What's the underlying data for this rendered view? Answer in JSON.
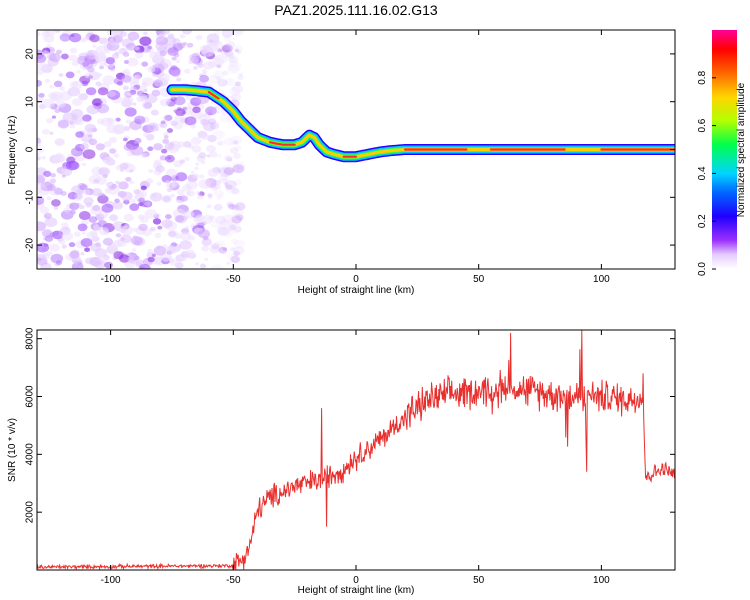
{
  "title": "PAZ1.2025.111.16.02.G13",
  "chart_data": [
    {
      "type": "heatmap",
      "xlabel": "Height of straight line (km)",
      "ylabel": "Frequency (Hz)",
      "xlim": [
        -130,
        130
      ],
      "ylim": [
        -25,
        25
      ],
      "xticks": [
        -100,
        -50,
        0,
        50,
        100
      ],
      "yticks": [
        20,
        10,
        0,
        -10,
        -20
      ],
      "colorbar": {
        "label": "Normalized spectral amplitude",
        "range": [
          0,
          1
        ],
        "ticks": [
          "0.0",
          "0.2",
          "0.4",
          "0.6",
          "0.8"
        ],
        "colors": [
          "#ffffff",
          "#c77dff",
          "#7a00ff",
          "#0000ff",
          "#00ccff",
          "#00ff66",
          "#ccff00",
          "#ff9900",
          "#ff0000",
          "#ff0099"
        ]
      },
      "ridge": {
        "height_km": [
          -75,
          -70,
          -65,
          -60,
          -57,
          -54,
          -52,
          -50,
          -47,
          -44,
          -40,
          -35,
          -30,
          -25,
          -22,
          -19,
          -17,
          -15,
          -12,
          -9,
          -5,
          0,
          5,
          10,
          15,
          20,
          30,
          50,
          70,
          90,
          110,
          130
        ],
        "frequency_hz": [
          12.5,
          12.5,
          12.3,
          12,
          11,
          10,
          9,
          8,
          6,
          4.5,
          2.5,
          1.5,
          1,
          1,
          1.5,
          3,
          2.5,
          1,
          -0.5,
          -1,
          -1.5,
          -1.5,
          -1,
          -0.5,
          -0.2,
          0,
          0,
          0,
          0,
          0,
          0,
          0
        ]
      },
      "noise_region_km": [
        -130,
        -50
      ]
    },
    {
      "type": "line",
      "xlabel": "Height of straight line (km)",
      "ylabel": "SNR (10 * v/v)",
      "xlim": [
        -130,
        130
      ],
      "ylim": [
        0,
        8300
      ],
      "xticks": [
        -100,
        -50,
        0,
        50,
        100
      ],
      "yticks": [
        2000,
        4000,
        6000,
        8000
      ],
      "color": "#e8302e",
      "trend": {
        "height_km": [
          -130,
          -50,
          -46,
          -43,
          -40,
          -35,
          -30,
          -25,
          -20,
          -15,
          -10,
          -5,
          0,
          10,
          20,
          30,
          40,
          50,
          60,
          70,
          80,
          90,
          100,
          110,
          117,
          118,
          120,
          125,
          130
        ],
        "snr": [
          100,
          150,
          400,
          900,
          2100,
          2500,
          2700,
          2900,
          3000,
          3100,
          3300,
          3500,
          3900,
          4500,
          5300,
          5900,
          6100,
          6200,
          6300,
          6200,
          6100,
          6000,
          6000,
          5900,
          6000,
          3200,
          3300,
          3500,
          3300
        ]
      },
      "spikes": [
        {
          "height_km": -14,
          "snr": 5600
        },
        {
          "height_km": -12,
          "snr": 1500
        },
        {
          "height_km": 63,
          "snr": 8200
        },
        {
          "height_km": 92,
          "snr": 8300
        },
        {
          "height_km": 94,
          "snr": 3400
        },
        {
          "height_km": 117,
          "snr": 6800
        }
      ]
    }
  ]
}
